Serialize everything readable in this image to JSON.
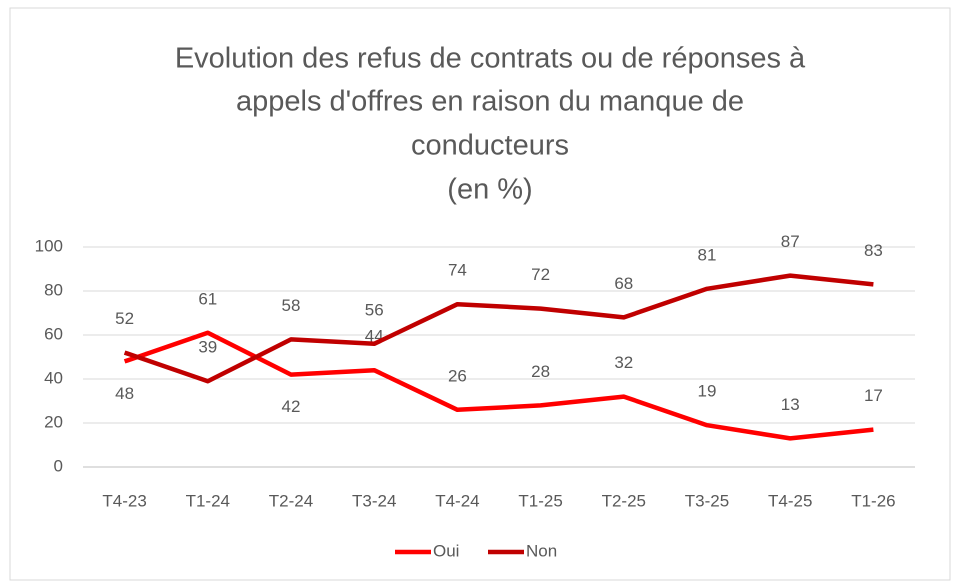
{
  "chart_data": {
    "type": "line",
    "title": [
      "Evolution des refus de contrats ou de réponses à",
      "appels d'offres en raison du manque de",
      "conducteurs"
    ],
    "subtitle": "(en %)",
    "categories": [
      "T4-23",
      "T1-24",
      "T2-24",
      "T3-24",
      "T4-24",
      "T1-25",
      "T2-25",
      "T3-25",
      "T4-25",
      "T1-26"
    ],
    "series": [
      {
        "name": "Oui",
        "color": "#ff0000",
        "values": [
          48,
          61,
          42,
          44,
          26,
          28,
          32,
          19,
          13,
          17
        ]
      },
      {
        "name": "Non",
        "color": "#c00000",
        "values": [
          52,
          39,
          58,
          56,
          74,
          72,
          68,
          81,
          87,
          83
        ]
      }
    ],
    "ylim": [
      0,
      100
    ],
    "yticks": [
      0,
      20,
      40,
      60,
      80,
      100
    ],
    "grid": true,
    "legend": "bottom"
  }
}
